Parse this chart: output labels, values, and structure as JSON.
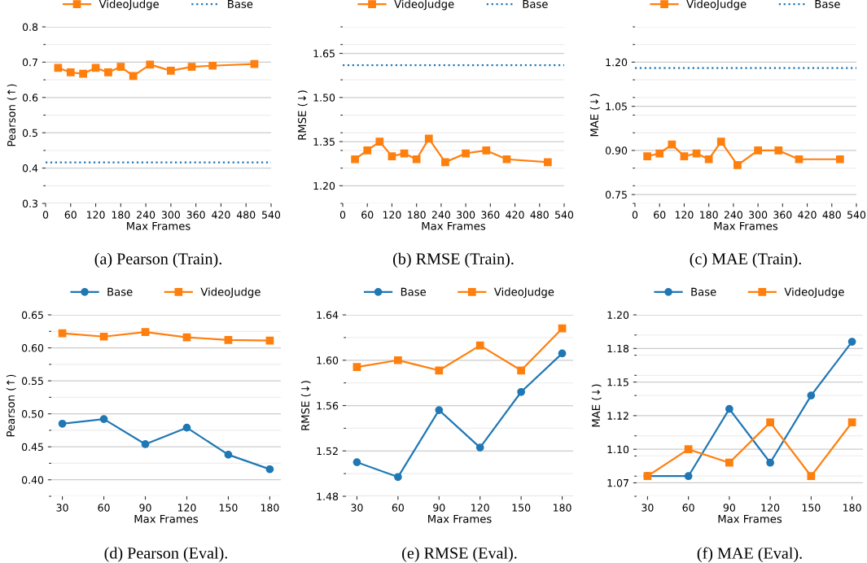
{
  "chart_data": [
    {
      "type": "line",
      "title": "(a) Pearson (Train).",
      "xlabel": "Max Frames",
      "ylabel": "Pearson (↑)",
      "x": [
        30,
        60,
        90,
        120,
        150,
        180,
        210,
        250,
        300,
        350,
        400,
        500
      ],
      "series": [
        {
          "name": "VideoJudge",
          "color": "#ff7f0e",
          "marker": "square",
          "values": [
            0.684,
            0.671,
            0.667,
            0.684,
            0.671,
            0.687,
            0.661,
            0.693,
            0.676,
            0.687,
            0.69,
            0.695
          ]
        }
      ],
      "ref_lines": [
        {
          "axis": "y",
          "value": 0.416,
          "label": "Base",
          "color": "#1f77b4",
          "line_style": "dotted"
        }
      ],
      "xlim": [
        0,
        540
      ],
      "xticks": [
        0,
        60,
        120,
        180,
        240,
        300,
        360,
        420,
        480,
        540
      ],
      "ylim": [
        0.3,
        0.8
      ],
      "yticks": [
        0.3,
        {
          "value": 0.35,
          "label": null
        },
        0.4,
        {
          "value": 0.45,
          "label": null
        },
        0.5,
        {
          "value": 0.55,
          "label": null
        },
        0.6,
        {
          "value": 0.65,
          "label": null
        },
        0.7,
        {
          "value": 0.75,
          "label": null
        },
        0.8
      ],
      "grid": "y",
      "legend": "top",
      "line_style": "solid"
    },
    {
      "type": "line",
      "title": "(b) RMSE (Train).",
      "xlabel": "Max Frames",
      "ylabel": "RMSE (↓)",
      "x": [
        30,
        60,
        90,
        120,
        150,
        180,
        210,
        250,
        300,
        350,
        400,
        500
      ],
      "series": [
        {
          "name": "VideoJudge",
          "color": "#ff7f0e",
          "marker": "square",
          "values": [
            1.29,
            1.32,
            1.35,
            1.3,
            1.31,
            1.29,
            1.36,
            1.28,
            1.31,
            1.32,
            1.29,
            1.28
          ]
        }
      ],
      "ref_lines": [
        {
          "axis": "y",
          "value": 1.61,
          "label": "Base",
          "color": "#1f77b4",
          "line_style": "dotted"
        }
      ],
      "xlim": [
        0,
        540
      ],
      "xticks": [
        0,
        60,
        120,
        180,
        240,
        300,
        360,
        420,
        480,
        540
      ],
      "ylim": [
        1.14,
        1.74
      ],
      "yticks": [
        {
          "value": 1.14,
          "label": null
        },
        {
          "value": 1.2,
          "label": "1.20"
        },
        {
          "value": 1.26,
          "label": null
        },
        {
          "value": 1.32,
          "label": null
        },
        1.35,
        {
          "value": 1.38,
          "label": null
        },
        {
          "value": 1.44,
          "label": null
        },
        {
          "value": 1.5,
          "label": "1.50"
        },
        {
          "value": 1.56,
          "label": null
        },
        1.65,
        {
          "value": 1.68,
          "label": null
        },
        {
          "value": 1.74,
          "label": null
        }
      ],
      "grid": "y",
      "legend": "top",
      "line_style": "solid"
    },
    {
      "type": "line",
      "title": "(c) MAE (Train).",
      "xlabel": "Max Frames",
      "ylabel": "MAE (↓)",
      "x": [
        30,
        60,
        90,
        120,
        150,
        180,
        210,
        250,
        300,
        350,
        400,
        500
      ],
      "series": [
        {
          "name": "VideoJudge",
          "color": "#ff7f0e",
          "marker": "square",
          "values": [
            0.88,
            0.89,
            0.92,
            0.88,
            0.89,
            0.87,
            0.93,
            0.85,
            0.9,
            0.9,
            0.87,
            0.87
          ]
        }
      ],
      "ref_lines": [
        {
          "axis": "y",
          "value": 1.18,
          "label": "Base",
          "color": "#1f77b4",
          "line_style": "dotted"
        }
      ],
      "xlim": [
        0,
        540
      ],
      "xticks": [
        0,
        60,
        120,
        180,
        240,
        300,
        360,
        420,
        480,
        540
      ],
      "ylim": [
        0.72,
        1.32
      ],
      "yticks": [
        {
          "value": 0.72,
          "label": null
        },
        0.75,
        {
          "value": 0.78,
          "label": null
        },
        {
          "value": 0.84,
          "label": null
        },
        {
          "value": 0.9,
          "label": "0.90"
        },
        {
          "value": 0.96,
          "label": null
        },
        {
          "value": 1.02,
          "label": null
        },
        1.05,
        {
          "value": 1.08,
          "label": null
        },
        {
          "value": 1.14,
          "label": null
        },
        {
          "value": 1.2,
          "label": "1.20"
        },
        {
          "value": 1.26,
          "label": null
        },
        {
          "value": 1.32,
          "label": null
        }
      ],
      "grid": "y",
      "legend": "top",
      "line_style": "solid"
    },
    {
      "type": "line",
      "title": "(d) Pearson (Eval).",
      "xlabel": "Max Frames",
      "ylabel": "Pearson (↑)",
      "x": [
        30,
        60,
        90,
        120,
        150,
        180
      ],
      "series": [
        {
          "name": "Base",
          "color": "#1f77b4",
          "marker": "circle",
          "values": [
            0.485,
            0.492,
            0.454,
            0.479,
            0.438,
            0.416
          ]
        },
        {
          "name": "VideoJudge",
          "color": "#ff7f0e",
          "marker": "square",
          "values": [
            0.622,
            0.617,
            0.624,
            0.616,
            0.612,
            0.611
          ]
        }
      ],
      "xlim": [
        22,
        188
      ],
      "xticks": [
        30,
        60,
        90,
        120,
        150,
        180
      ],
      "ylim": [
        0.375,
        0.65
      ],
      "yticks": [
        {
          "value": 0.375,
          "label": null
        },
        {
          "value": 0.4,
          "label": "0.40"
        },
        {
          "value": 0.425,
          "label": null
        },
        0.45,
        {
          "value": 0.475,
          "label": null
        },
        {
          "value": 0.5,
          "label": "0.50"
        },
        {
          "value": 0.525,
          "label": null
        },
        0.55,
        {
          "value": 0.575,
          "label": null
        },
        {
          "value": 0.6,
          "label": "0.60"
        },
        {
          "value": 0.625,
          "label": null
        },
        0.65
      ],
      "grid": "y",
      "legend": "top",
      "line_style": "solid"
    },
    {
      "type": "line",
      "title": "(e) RMSE (Eval).",
      "xlabel": "Max Frames",
      "ylabel": "RMSE (↓)",
      "x": [
        30,
        60,
        90,
        120,
        150,
        180
      ],
      "series": [
        {
          "name": "Base",
          "color": "#1f77b4",
          "marker": "circle",
          "values": [
            1.51,
            1.497,
            1.556,
            1.523,
            1.572,
            1.606
          ]
        },
        {
          "name": "VideoJudge",
          "color": "#ff7f0e",
          "marker": "square",
          "values": [
            1.594,
            1.6,
            1.591,
            1.613,
            1.591,
            1.628
          ]
        }
      ],
      "xlim": [
        22,
        188
      ],
      "xticks": [
        30,
        60,
        90,
        120,
        150,
        180
      ],
      "ylim": [
        1.48,
        1.64
      ],
      "yticks": [
        1.48,
        {
          "value": 1.5,
          "label": null
        },
        1.52,
        {
          "value": 1.54,
          "label": null
        },
        1.56,
        {
          "value": 1.58,
          "label": null
        },
        {
          "value": 1.6,
          "label": "1.60"
        },
        {
          "value": 1.62,
          "label": null
        },
        1.64
      ],
      "grid": "y",
      "legend": "top",
      "line_style": "solid"
    },
    {
      "type": "line",
      "title": "(f) MAE (Eval).",
      "xlabel": "Max Frames",
      "ylabel": "MAE (↓)",
      "x": [
        30,
        60,
        90,
        120,
        150,
        180
      ],
      "series": [
        {
          "name": "Base",
          "color": "#1f77b4",
          "marker": "circle",
          "values": [
            1.08,
            1.08,
            1.13,
            1.09,
            1.14,
            1.18
          ]
        },
        {
          "name": "VideoJudge",
          "color": "#ff7f0e",
          "marker": "square",
          "values": [
            1.08,
            1.1,
            1.09,
            1.12,
            1.08,
            1.12
          ]
        }
      ],
      "xlim": [
        22,
        188
      ],
      "xticks": [
        30,
        60,
        90,
        120,
        150,
        180
      ],
      "ylim": [
        1.065,
        1.2
      ],
      "yticks": [
        {
          "value": 1.065,
          "label": null
        },
        {
          "value": 1.075,
          "label": "1.07"
        },
        {
          "value": 1.08,
          "label": null
        },
        {
          "value": 1.095,
          "label": null
        },
        {
          "value": 1.1,
          "label": "1.10"
        },
        {
          "value": 1.11,
          "label": null
        },
        {
          "value": 1.125,
          "label": "1.12"
        },
        {
          "value": 1.14,
          "label": null
        },
        1.15,
        {
          "value": 1.155,
          "label": null
        },
        {
          "value": 1.17,
          "label": null
        },
        {
          "value": 1.175,
          "label": "1.18"
        },
        {
          "value": 1.185,
          "label": null
        },
        {
          "value": 1.2,
          "label": "1.20"
        }
      ],
      "grid": "y",
      "legend": "top",
      "line_style": "solid"
    }
  ]
}
